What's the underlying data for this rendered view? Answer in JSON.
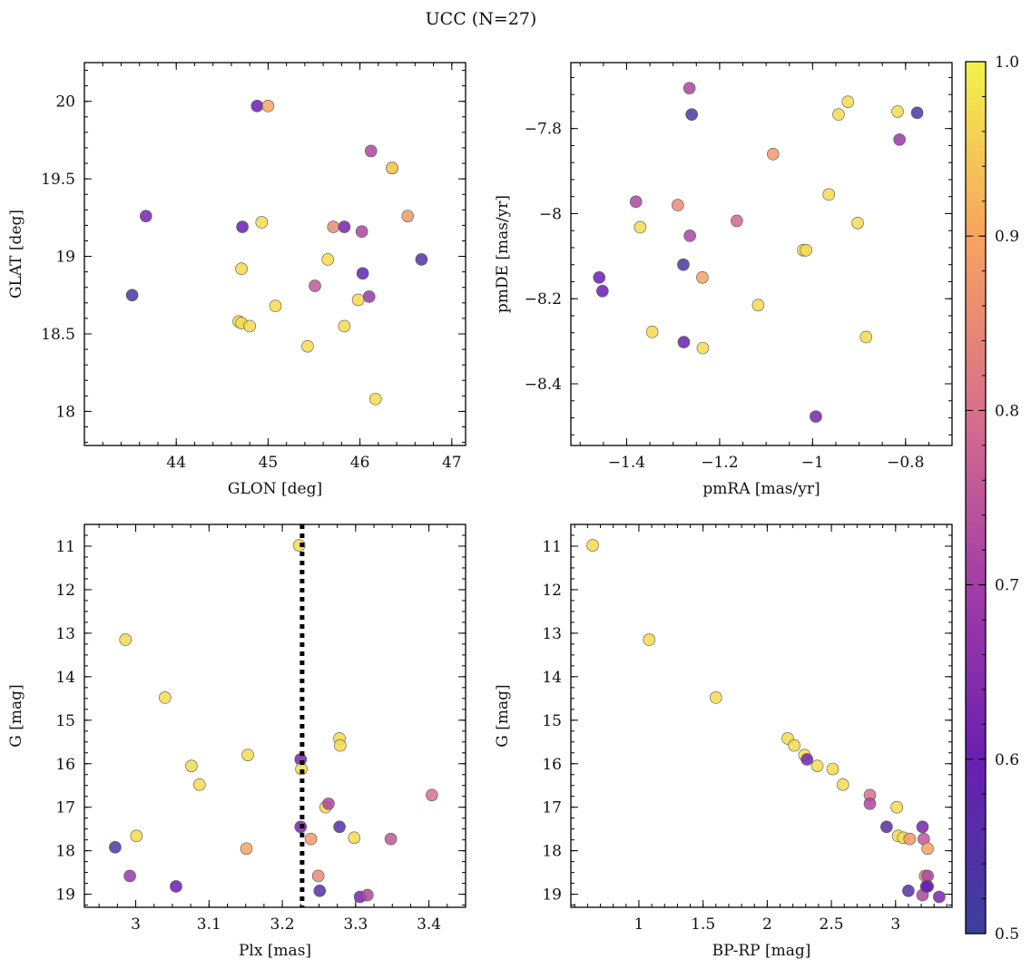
{
  "title": "UCC (N=27)",
  "colorbar": {
    "min": 0.5,
    "max": 1.0,
    "ticks": [
      0.5,
      0.6,
      0.7,
      0.8,
      0.9,
      1.0
    ],
    "colormap": "plasma"
  },
  "chart_data": [
    {
      "type": "scatter",
      "xlabel": "GLON [deg]",
      "ylabel": "GLAT [deg]",
      "xlim": [
        43.0,
        47.15
      ],
      "ylim": [
        17.78,
        20.25
      ],
      "invert_y": false,
      "xticks": [
        44,
        45,
        46,
        47
      ],
      "yticks": [
        18.0,
        18.5,
        19.0,
        19.5,
        20.0
      ],
      "x": [
        43.52,
        43.67,
        44.72,
        44.88,
        45.0,
        44.93,
        44.71,
        44.68,
        44.71,
        44.8,
        45.08,
        45.43,
        45.51,
        45.65,
        45.71,
        45.83,
        45.83,
        45.98,
        46.02,
        46.03,
        46.1,
        46.12,
        46.17,
        46.35,
        46.35,
        46.52,
        46.67
      ],
      "y": [
        18.75,
        19.26,
        19.19,
        19.97,
        19.97,
        19.22,
        18.92,
        18.58,
        18.57,
        18.55,
        18.68,
        18.42,
        18.81,
        18.98,
        19.19,
        19.19,
        18.55,
        18.72,
        19.16,
        18.89,
        18.74,
        19.68,
        18.08,
        19.57,
        19.57,
        19.26,
        18.98
      ],
      "p": [
        0.52,
        0.62,
        0.6,
        0.6,
        0.9,
        0.97,
        0.97,
        0.97,
        0.97,
        0.97,
        0.97,
        0.97,
        0.75,
        0.97,
        0.85,
        0.62,
        0.97,
        0.97,
        0.72,
        0.57,
        0.68,
        0.72,
        0.97,
        0.97,
        0.95,
        0.88,
        0.55
      ]
    },
    {
      "type": "scatter",
      "xlabel": "pmRA [mas/yr]",
      "ylabel": "pmDE [mas/yr]",
      "xlim": [
        -1.52,
        -0.7
      ],
      "ylim": [
        -8.545,
        -7.645
      ],
      "invert_y": false,
      "xticks": [
        -1.4,
        -1.2,
        -1.0,
        -0.8
      ],
      "yticks": [
        -8.4,
        -8.2,
        -8.0,
        -7.8
      ],
      "x": [
        -1.265,
        -1.26,
        -1.085,
        -0.924,
        -0.944,
        -0.817,
        -0.775,
        -0.813,
        -0.965,
        -1.02,
        -1.014,
        -0.903,
        -1.38,
        -1.371,
        -1.29,
        -1.264,
        -1.163,
        -1.459,
        -1.452,
        -1.278,
        -1.237,
        -1.345,
        -1.117,
        -1.236,
        -1.277,
        -0.885,
        -0.993
      ],
      "y": [
        -7.705,
        -7.767,
        -7.86,
        -7.737,
        -7.767,
        -7.76,
        -7.763,
        -7.826,
        -7.955,
        -8.086,
        -8.086,
        -8.022,
        -7.972,
        -8.032,
        -7.98,
        -8.052,
        -8.017,
        -8.15,
        -8.182,
        -8.12,
        -8.15,
        -8.278,
        -8.215,
        -8.316,
        -8.302,
        -8.29,
        -8.477
      ],
      "p": [
        0.72,
        0.52,
        0.88,
        0.97,
        0.97,
        0.97,
        0.52,
        0.68,
        0.97,
        0.97,
        0.97,
        0.97,
        0.72,
        0.97,
        0.85,
        0.72,
        0.78,
        0.6,
        0.6,
        0.52,
        0.9,
        0.97,
        0.97,
        0.97,
        0.6,
        0.97,
        0.62
      ]
    },
    {
      "type": "scatter",
      "xlabel": "Plx [mas]",
      "ylabel": "G [mag]",
      "xlim": [
        2.93,
        3.45
      ],
      "ylim": [
        10.5,
        19.3
      ],
      "invert_y": true,
      "xticks": [
        3.0,
        3.1,
        3.2,
        3.3,
        3.4
      ],
      "yticks": [
        11,
        12,
        13,
        14,
        15,
        16,
        17,
        18,
        19
      ],
      "vline": 3.227,
      "x": [
        3.223,
        2.986,
        3.04,
        3.153,
        3.076,
        3.087,
        3.225,
        3.226,
        3.259,
        3.263,
        3.278,
        3.279,
        3.404,
        3.001,
        2.972,
        3.151,
        3.225,
        3.239,
        3.278,
        3.298,
        3.348,
        2.992,
        3.055,
        3.249,
        3.251,
        3.306,
        3.316
      ],
      "y": [
        10.98,
        13.15,
        14.48,
        15.8,
        16.05,
        16.48,
        15.9,
        16.12,
        17.0,
        16.92,
        15.42,
        15.58,
        16.72,
        17.66,
        17.92,
        17.95,
        17.45,
        17.73,
        17.45,
        17.7,
        17.73,
        18.58,
        18.82,
        18.58,
        18.92,
        19.06,
        19.02
      ],
      "p": [
        0.97,
        0.97,
        0.97,
        0.97,
        0.97,
        0.97,
        0.62,
        0.97,
        0.97,
        0.72,
        0.97,
        0.97,
        0.8,
        0.97,
        0.52,
        0.9,
        0.62,
        0.88,
        0.55,
        0.97,
        0.75,
        0.68,
        0.6,
        0.85,
        0.55,
        0.62,
        0.72
      ]
    },
    {
      "type": "scatter",
      "xlabel": "BP-RP [mag]",
      "ylabel": "G [mag]",
      "xlim": [
        0.47,
        3.44
      ],
      "ylim": [
        10.5,
        19.3
      ],
      "invert_y": true,
      "xticks": [
        1.0,
        1.5,
        2.0,
        2.5,
        3.0
      ],
      "yticks": [
        11,
        12,
        13,
        14,
        15,
        16,
        17,
        18,
        19
      ],
      "x": [
        0.64,
        1.08,
        1.6,
        2.16,
        2.21,
        2.29,
        2.31,
        2.39,
        2.51,
        2.59,
        2.8,
        2.8,
        2.93,
        3.01,
        3.02,
        3.06,
        3.11,
        3.21,
        3.22,
        3.23,
        3.25,
        3.25,
        3.25,
        3.1,
        3.21,
        3.24,
        3.34
      ],
      "y": [
        10.98,
        13.15,
        14.48,
        15.42,
        15.58,
        15.8,
        15.9,
        16.05,
        16.12,
        16.48,
        16.72,
        16.92,
        17.45,
        17.0,
        17.66,
        17.7,
        17.73,
        17.45,
        17.73,
        18.58,
        17.95,
        18.58,
        18.82,
        18.92,
        19.02,
        18.82,
        19.06
      ],
      "p": [
        0.97,
        0.97,
        0.97,
        0.97,
        0.97,
        0.97,
        0.62,
        0.97,
        0.97,
        0.97,
        0.8,
        0.72,
        0.55,
        0.97,
        0.97,
        0.97,
        0.88,
        0.62,
        0.75,
        0.85,
        0.9,
        0.72,
        0.6,
        0.55,
        0.72,
        0.6,
        0.62
      ]
    }
  ]
}
